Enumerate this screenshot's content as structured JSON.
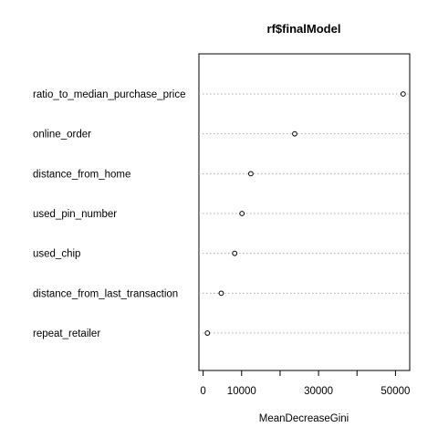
{
  "chart_data": {
    "type": "scatter",
    "title": "rf$finalModel",
    "xlabel": "MeanDecreaseGini",
    "ylabel": "",
    "categories": [
      "ratio_to_median_purchase_price",
      "online_order",
      "distance_from_home",
      "used_pin_number",
      "used_chip",
      "distance_from_last_transaction",
      "repeat_retailer"
    ],
    "values": [
      52000,
      23800,
      12400,
      10100,
      8200,
      4700,
      1100
    ],
    "xlim": [
      -1100,
      53700
    ],
    "xticks": [
      0,
      10000,
      20000,
      30000,
      40000,
      50000
    ],
    "xtick_labels": [
      "0",
      "10000",
      "",
      "30000",
      "",
      "50000"
    ],
    "grid": "dotted horizontal",
    "point_style": "open circle"
  }
}
